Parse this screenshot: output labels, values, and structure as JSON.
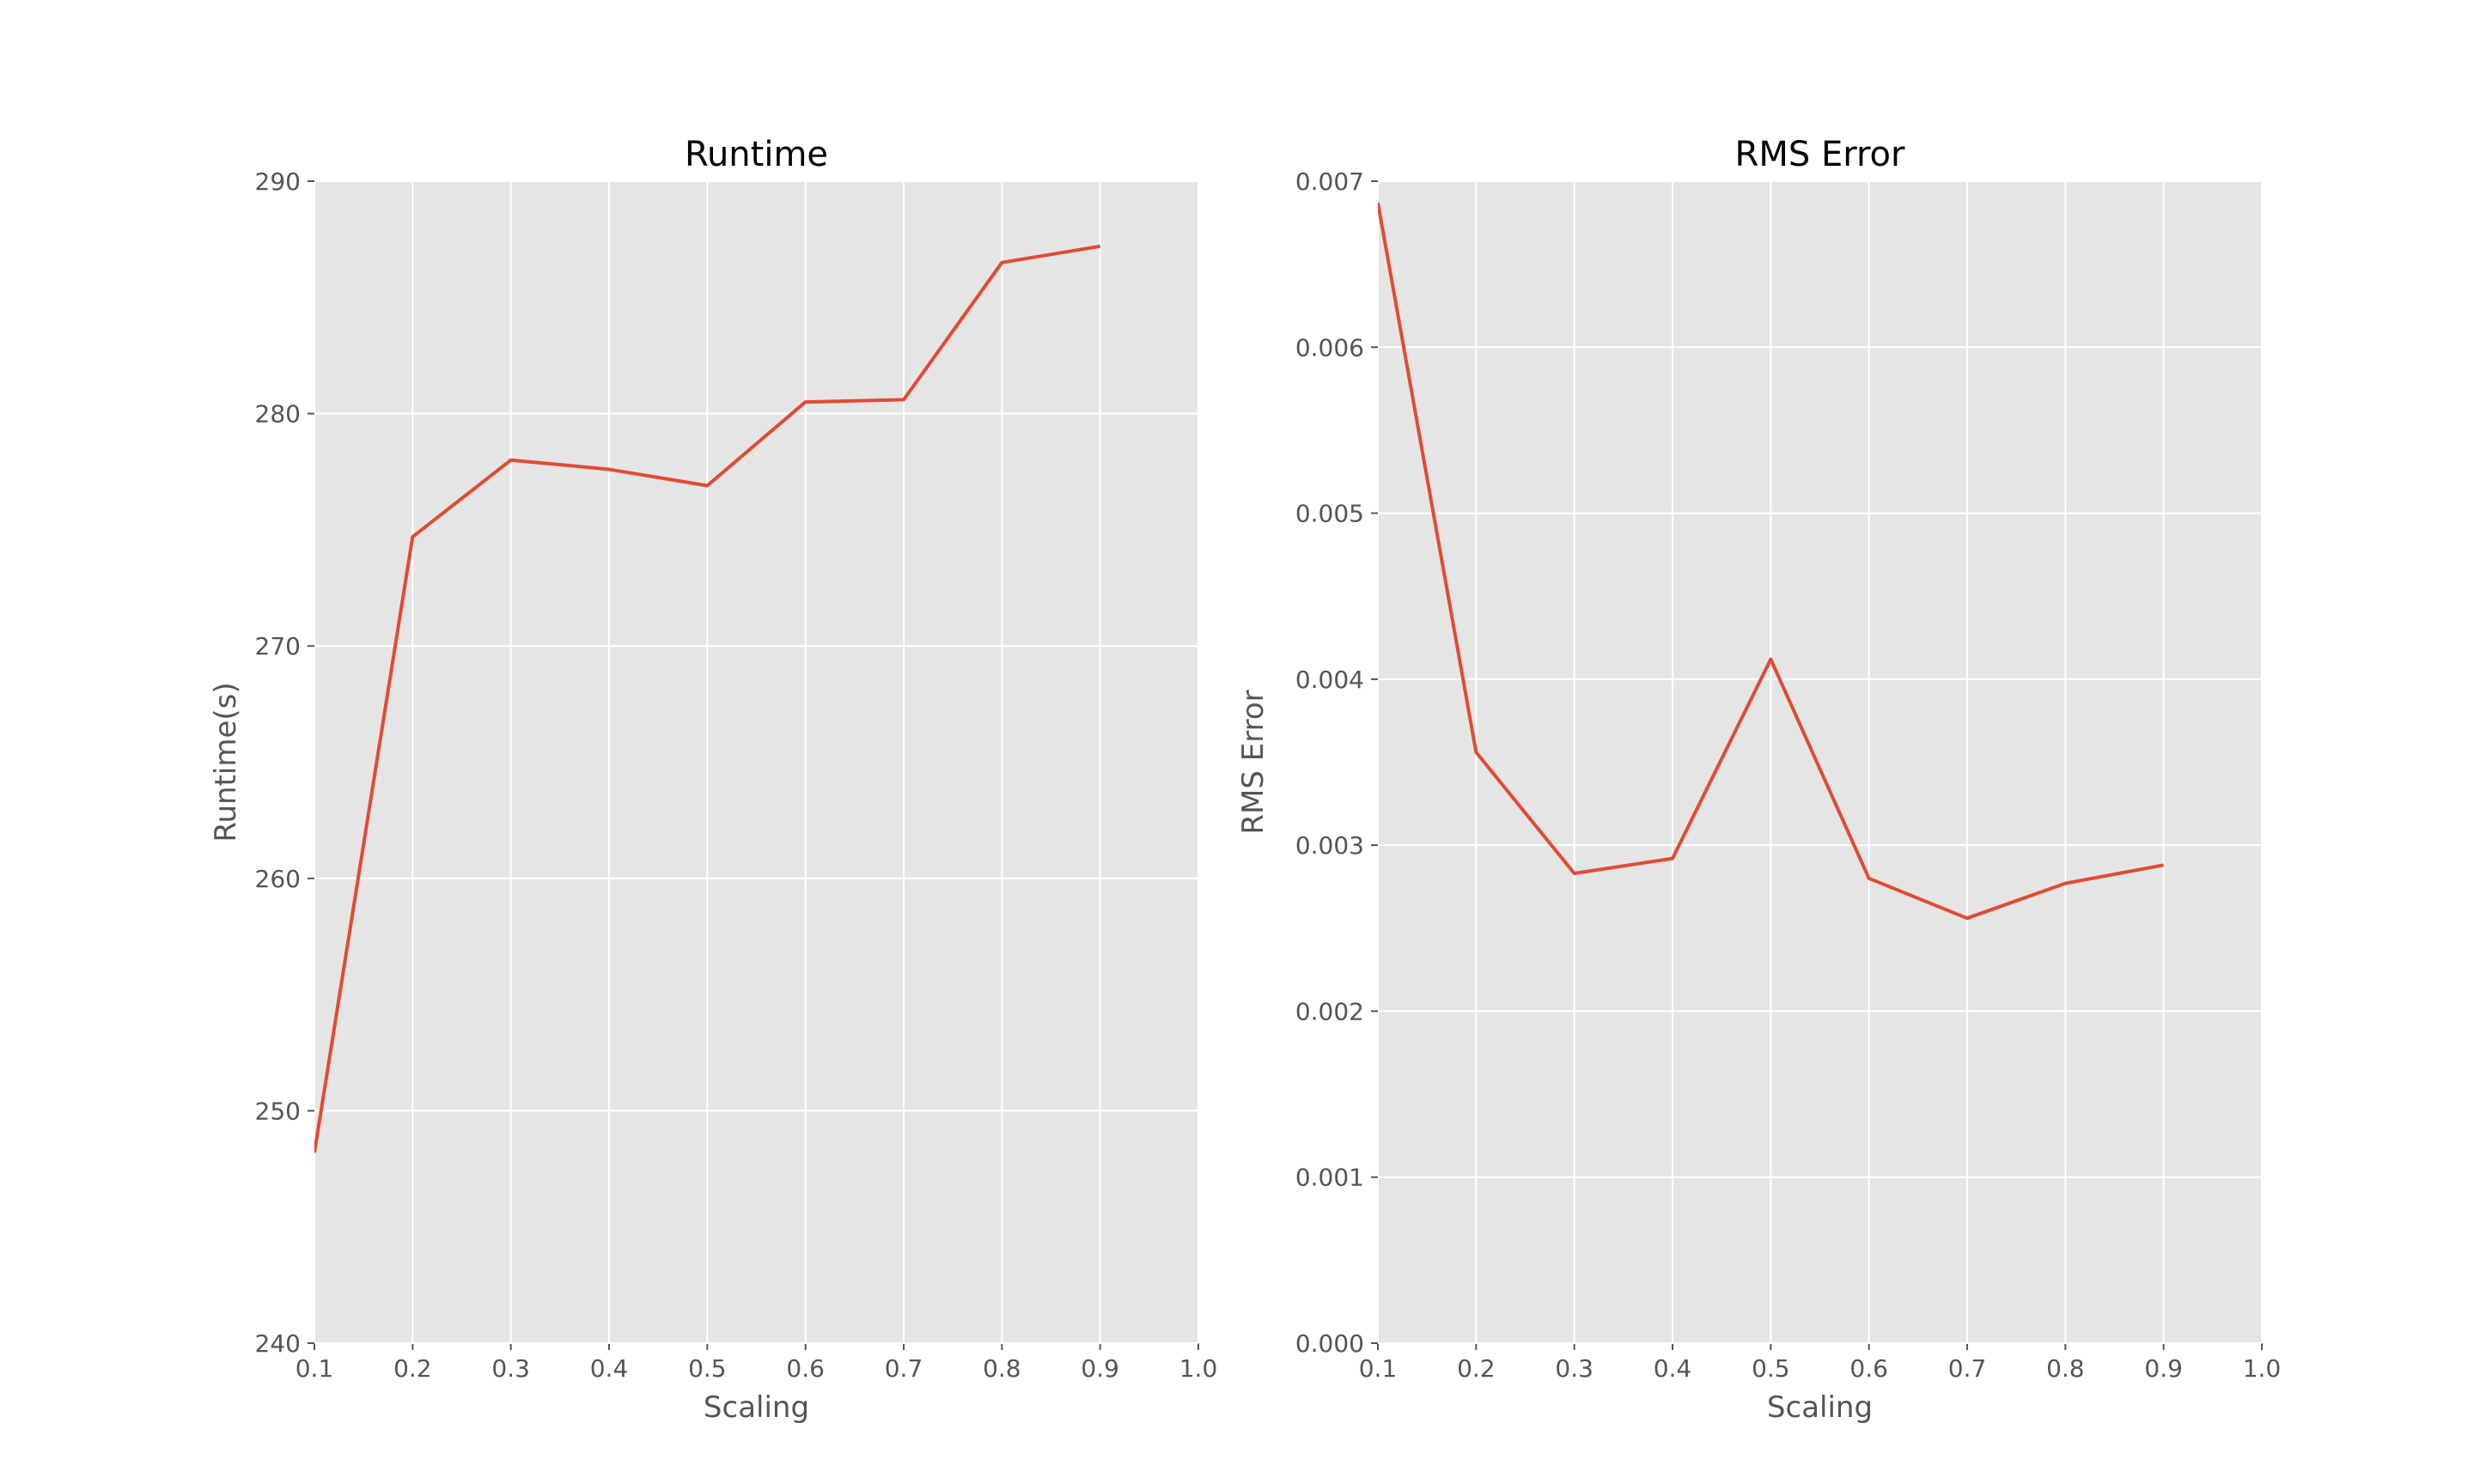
{
  "chart_data": [
    {
      "type": "line",
      "title": "Runtime",
      "xlabel": "Scaling",
      "ylabel": "Runtime(s)",
      "xlim": [
        0.1,
        1.0
      ],
      "ylim": [
        240,
        290
      ],
      "xticks": [
        "0.1",
        "0.2",
        "0.3",
        "0.4",
        "0.5",
        "0.6",
        "0.7",
        "0.8",
        "0.9",
        "1.0"
      ],
      "yticks": [
        "240",
        "250",
        "260",
        "270",
        "280",
        "290"
      ],
      "grid": true,
      "x": [
        0.1,
        0.2,
        0.3,
        0.4,
        0.5,
        0.6,
        0.7,
        0.8,
        0.9
      ],
      "series": [
        {
          "values": [
            248.2,
            274.7,
            278.0,
            277.6,
            276.9,
            280.5,
            280.6,
            286.5,
            287.2
          ]
        }
      ]
    },
    {
      "type": "line",
      "title": "RMS Error",
      "xlabel": "Scaling",
      "ylabel": "RMS Error",
      "xlim": [
        0.1,
        1.0
      ],
      "ylim": [
        0.0,
        0.007
      ],
      "xticks": [
        "0.1",
        "0.2",
        "0.3",
        "0.4",
        "0.5",
        "0.6",
        "0.7",
        "0.8",
        "0.9",
        "1.0"
      ],
      "yticks": [
        "0.000",
        "0.001",
        "0.002",
        "0.003",
        "0.004",
        "0.005",
        "0.006",
        "0.007"
      ],
      "grid": true,
      "x": [
        0.1,
        0.2,
        0.3,
        0.4,
        0.5,
        0.6,
        0.7,
        0.8,
        0.9
      ],
      "series": [
        {
          "values": [
            0.00687,
            0.00356,
            0.00283,
            0.00292,
            0.00412,
            0.0028,
            0.00256,
            0.00277,
            0.00288
          ]
        }
      ]
    }
  ],
  "style": {
    "background": "#ffffff",
    "plot_background": "#e5e5e5",
    "grid_color": "#ffffff",
    "line_color": "#e24a33",
    "tick_color": "#555555",
    "title_color": "#000000"
  }
}
